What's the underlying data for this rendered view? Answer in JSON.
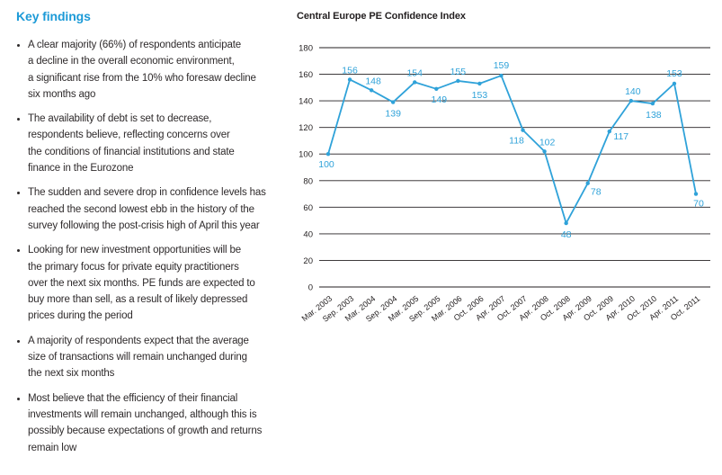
{
  "key_findings": {
    "heading": "Key findings",
    "heading_color": "#1c9ad7",
    "bullets": [
      "A clear majority (66%) of respondents anticipate\na decline in the overall economic environment,\na significant rise from the 10% who foresaw decline\nsix months ago",
      "The availability of debt is set to decrease,\nrespondents believe, reflecting concerns over\nthe conditions of financial institutions and state\nfinance in the Eurozone",
      "The sudden and severe drop in confidence levels has\nreached the second lowest ebb in the history of the\nsurvey following the post-crisis high of April this year",
      "Looking for new investment opportunities will be\nthe primary focus for private equity practitioners\nover the next six months. PE funds are expected to\nbuy more than sell, as a result of likely depressed\nprices during the period",
      "A majority of respondents expect that the average\nsize of transactions will remain unchanged during\nthe next six months",
      "Most believe that the efficiency of their financial\ninvestments will remain unchanged, although this is\npossibly because expectations of growth and returns\nremain low"
    ]
  },
  "chart_data": {
    "type": "line",
    "title": "Central Europe PE Confidence Index",
    "categories": [
      "Mar. 2003",
      "Sep. 2003",
      "Mar. 2004",
      "Sep. 2004",
      "Mar. 2005",
      "Sep. 2005",
      "Mar. 2006",
      "Oct. 2006",
      "Apr. 2007",
      "Oct. 2007",
      "Apr. 2008",
      "Oct. 2008",
      "Apr. 2009",
      "Oct. 2009",
      "Apr. 2010",
      "Oct. 2010",
      "Apr. 2011",
      "Oct. 2011"
    ],
    "series": [
      {
        "name": "PE Confidence Index",
        "values": [
          100,
          156,
          148,
          139,
          154,
          149,
          155,
          153,
          159,
          118,
          102,
          48,
          78,
          117,
          140,
          138,
          153,
          70
        ]
      }
    ],
    "xlabel": "",
    "ylabel": "",
    "ylim": [
      0,
      180
    ],
    "yticks": [
      0,
      20,
      40,
      60,
      80,
      100,
      120,
      140,
      160,
      180
    ],
    "grid": "horizontal",
    "legend": "none",
    "data_labels": true,
    "line_color": "#2fa2d9",
    "axis_color": "#231f20"
  }
}
